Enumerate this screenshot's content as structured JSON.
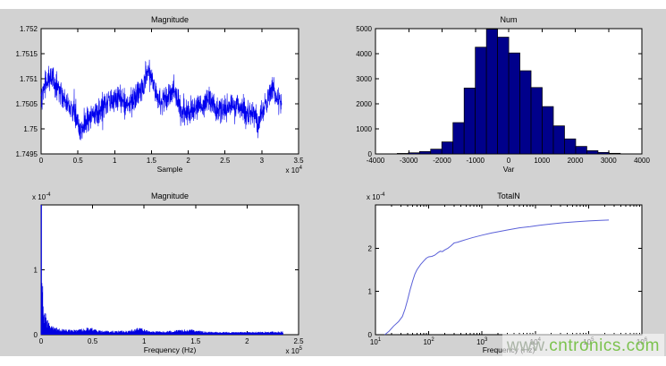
{
  "figure": {
    "background": "#d2d2d2",
    "plot_background": "#ffffff",
    "axis_color": "#000000",
    "text_color": "#000000"
  },
  "watermark": {
    "prefix": "www.",
    "domain": "cntronics.com",
    "prefix_color": "#aab4a6",
    "domain_color": "#7cc24e"
  },
  "chart_data": [
    {
      "id": "mag_time",
      "type": "line",
      "render_style": "noisy_line",
      "title": "Magnitude",
      "xlabel": "Sample",
      "xlim": [
        0,
        3.5
      ],
      "ylim": [
        1.7495,
        1.752
      ],
      "xticks": {
        "values": [
          0,
          0.5,
          1,
          1.5,
          2,
          2.5,
          3,
          3.5
        ],
        "labels": [
          "0",
          "0.5",
          "1",
          "1.5",
          "2",
          "2.5",
          "3",
          "3.5"
        ]
      },
      "yticks": {
        "values": [
          1.7495,
          1.75,
          1.7505,
          1.751,
          1.7515,
          1.752
        ],
        "labels": [
          "1.7495",
          "1.75",
          "1.7505",
          "1.751",
          "1.7515",
          "1.752"
        ]
      },
      "x_exponent": {
        "base": "x 10",
        "exp": "4"
      },
      "y_exponent": null,
      "line_color": "#0000ee",
      "x_data_end": 3.27,
      "noise_amplitude": 0.00038,
      "trend": [
        [
          0,
          1.7506
        ],
        [
          0.05,
          1.7509
        ],
        [
          0.15,
          1.751
        ],
        [
          0.25,
          1.7508
        ],
        [
          0.35,
          1.7505
        ],
        [
          0.45,
          1.7503
        ],
        [
          0.55,
          1.75
        ],
        [
          0.65,
          1.7502
        ],
        [
          0.75,
          1.7503
        ],
        [
          0.9,
          1.7505
        ],
        [
          1.05,
          1.7506
        ],
        [
          1.15,
          1.7505
        ],
        [
          1.3,
          1.7506
        ],
        [
          1.4,
          1.7509
        ],
        [
          1.45,
          1.7512
        ],
        [
          1.5,
          1.751
        ],
        [
          1.6,
          1.7506
        ],
        [
          1.7,
          1.7506
        ],
        [
          1.8,
          1.7508
        ],
        [
          1.9,
          1.7504
        ],
        [
          2.0,
          1.7503
        ],
        [
          2.1,
          1.7504
        ],
        [
          2.2,
          1.7505
        ],
        [
          2.3,
          1.7506
        ],
        [
          2.4,
          1.7504
        ],
        [
          2.5,
          1.7504
        ],
        [
          2.6,
          1.7505
        ],
        [
          2.7,
          1.7504
        ],
        [
          2.8,
          1.7503
        ],
        [
          2.9,
          1.7503
        ],
        [
          2.95,
          1.7501
        ],
        [
          3.05,
          1.7505
        ],
        [
          3.15,
          1.7508
        ],
        [
          3.2,
          1.7506
        ],
        [
          3.27,
          1.7505
        ]
      ]
    },
    {
      "id": "hist_num",
      "type": "bar",
      "render_style": "histogram",
      "title": "Num",
      "xlabel": "Var",
      "xlim": [
        -4000,
        4000
      ],
      "ylim": [
        0,
        5000
      ],
      "xticks": {
        "values": [
          -4000,
          -3000,
          -2000,
          -1000,
          0,
          1000,
          2000,
          3000,
          4000
        ],
        "labels": [
          "-4000",
          "-3000",
          "-2000",
          "-1000",
          "0",
          "1000",
          "2000",
          "3000",
          "4000"
        ]
      },
      "yticks": {
        "values": [
          0,
          1000,
          2000,
          3000,
          4000,
          5000
        ],
        "labels": [
          "0",
          "1000",
          "2000",
          "3000",
          "4000",
          "5000"
        ]
      },
      "x_exponent": null,
      "y_exponent": null,
      "bar_fill": "#00008b",
      "bar_edge": "#000000",
      "bin_width": 335,
      "bin_centers": [
        -3180,
        -2845,
        -2510,
        -2175,
        -1840,
        -1505,
        -1170,
        -835,
        -500,
        -165,
        170,
        505,
        840,
        1175,
        1510,
        1845,
        2180,
        2515,
        2850,
        3185
      ],
      "counts": [
        20,
        45,
        95,
        190,
        480,
        1250,
        2630,
        4260,
        4980,
        4660,
        4030,
        3320,
        2650,
        1890,
        1120,
        600,
        300,
        130,
        60,
        25
      ]
    },
    {
      "id": "mag_freq",
      "type": "area",
      "render_style": "spiky_spectrum",
      "title": "Magnitude",
      "xlabel": "Frequency (Hz)",
      "xlim": [
        0,
        2.5
      ],
      "ylim": [
        0,
        2
      ],
      "xticks": {
        "values": [
          0,
          0.5,
          1,
          1.5,
          2,
          2.5
        ],
        "labels": [
          "0",
          "0.5",
          "1",
          "1.5",
          "2",
          "2.5"
        ]
      },
      "yticks": {
        "values": [
          0,
          1
        ],
        "labels": [
          "0",
          "1"
        ]
      },
      "x_exponent": {
        "base": "x 10",
        "exp": "5"
      },
      "y_exponent": {
        "base": "x 10",
        "exp": "-4"
      },
      "line_color": "#0000e0",
      "x_data_end": 2.35,
      "envelope": [
        [
          0,
          2.0
        ],
        [
          0.005,
          2.0
        ],
        [
          0.01,
          1.1
        ],
        [
          0.02,
          0.55
        ],
        [
          0.03,
          0.38
        ],
        [
          0.05,
          0.25
        ],
        [
          0.08,
          0.16
        ],
        [
          0.12,
          0.11
        ],
        [
          0.18,
          0.08
        ],
        [
          0.25,
          0.07
        ],
        [
          0.35,
          0.06
        ],
        [
          0.48,
          0.1
        ],
        [
          0.55,
          0.05
        ],
        [
          0.7,
          0.045
        ],
        [
          0.85,
          0.05
        ],
        [
          0.97,
          0.11
        ],
        [
          1.05,
          0.04
        ],
        [
          1.2,
          0.04
        ],
        [
          1.43,
          0.07
        ],
        [
          1.6,
          0.035
        ],
        [
          1.8,
          0.03
        ],
        [
          2.0,
          0.03
        ],
        [
          2.2,
          0.035
        ],
        [
          2.35,
          0.04
        ]
      ]
    },
    {
      "id": "totaln",
      "type": "line",
      "render_style": "smooth_line",
      "x_scale": "log",
      "title": "TotalN",
      "xlabel": "Frequency (Hz)",
      "xlim_log": [
        1,
        6
      ],
      "ylim": [
        0,
        3
      ],
      "xticks": {
        "log_base": "10",
        "exponents": [
          "1",
          "2",
          "3",
          "4",
          "5",
          "6"
        ]
      },
      "yticks": {
        "values": [
          0,
          1,
          2
        ],
        "labels": [
          "0",
          "1",
          "2"
        ]
      },
      "x_exponent": null,
      "y_exponent": {
        "base": "x 10",
        "exp": "-4"
      },
      "line_color": "#5a60d8",
      "points": [
        [
          15,
          0
        ],
        [
          18,
          0.08
        ],
        [
          22,
          0.2
        ],
        [
          27,
          0.3
        ],
        [
          32,
          0.42
        ],
        [
          36,
          0.6
        ],
        [
          40,
          0.8
        ],
        [
          45,
          1.05
        ],
        [
          50,
          1.25
        ],
        [
          55,
          1.4
        ],
        [
          60,
          1.5
        ],
        [
          70,
          1.62
        ],
        [
          80,
          1.7
        ],
        [
          90,
          1.77
        ],
        [
          100,
          1.8
        ],
        [
          115,
          1.81
        ],
        [
          130,
          1.84
        ],
        [
          150,
          1.9
        ],
        [
          165,
          1.93
        ],
        [
          180,
          1.92
        ],
        [
          200,
          1.96
        ],
        [
          230,
          2.0
        ],
        [
          260,
          2.05
        ],
        [
          300,
          2.12
        ],
        [
          350,
          2.14
        ],
        [
          420,
          2.17
        ],
        [
          500,
          2.2
        ],
        [
          650,
          2.24
        ],
        [
          800,
          2.27
        ],
        [
          1000,
          2.3
        ],
        [
          1500,
          2.35
        ],
        [
          2000,
          2.38
        ],
        [
          3000,
          2.42
        ],
        [
          5000,
          2.47
        ],
        [
          8000,
          2.5
        ],
        [
          12000,
          2.53
        ],
        [
          20000,
          2.56
        ],
        [
          35000,
          2.59
        ],
        [
          60000,
          2.61
        ],
        [
          100000,
          2.63
        ],
        [
          150000,
          2.64
        ],
        [
          240000,
          2.65
        ]
      ]
    }
  ]
}
